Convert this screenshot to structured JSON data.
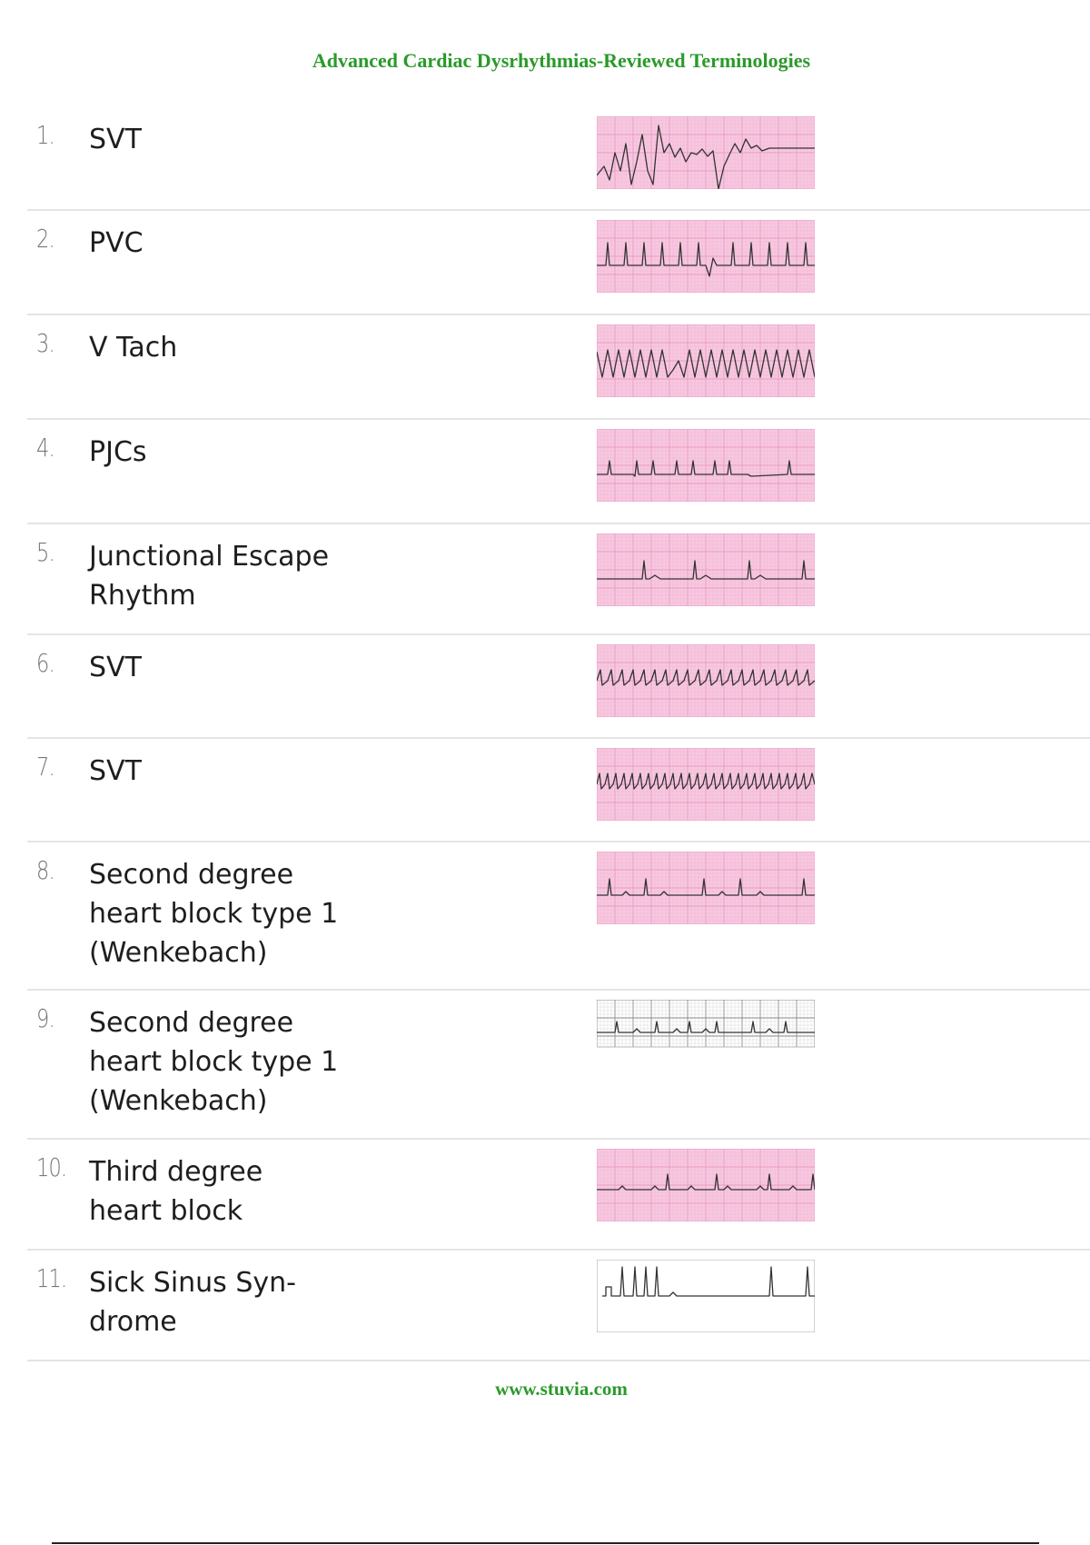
{
  "header": {
    "title": "Advanced Cardiac Dysrhythmias-Reviewed Terminologies"
  },
  "items": [
    {
      "number": "1.",
      "term": "SVT",
      "strip_icon": "ecg-irregular-strip",
      "strip_style": "pink"
    },
    {
      "number": "2.",
      "term": "PVC",
      "strip_icon": "ecg-pvc-strip",
      "strip_style": "pink"
    },
    {
      "number": "3.",
      "term": "V Tach",
      "strip_icon": "ecg-vtach-strip",
      "strip_style": "pink"
    },
    {
      "number": "4.",
      "term": "PJCs",
      "strip_icon": "ecg-pjc-strip",
      "strip_style": "pink"
    },
    {
      "number": "5.",
      "term": "Junctional Escape\nRhythm",
      "strip_icon": "ecg-junctional-strip",
      "strip_style": "pink"
    },
    {
      "number": "6.",
      "term": "SVT",
      "strip_icon": "ecg-svt-strip",
      "strip_style": "pink"
    },
    {
      "number": "7.",
      "term": "SVT",
      "strip_icon": "ecg-svt-fast-strip",
      "strip_style": "pink"
    },
    {
      "number": "8.",
      "term": "Second degree\nheart block type 1\n(Wenkebach)",
      "strip_icon": "ecg-wenckebach-strip",
      "strip_style": "pink"
    },
    {
      "number": "9.",
      "term": "Second degree\nheart block type 1\n(Wenkebach)",
      "strip_icon": "ecg-wenckebach-gray-strip",
      "strip_style": "gray"
    },
    {
      "number": "10.",
      "term": "Third degree\nheart block",
      "strip_icon": "ecg-third-degree-strip",
      "strip_style": "pink"
    },
    {
      "number": "11.",
      "term": "Sick Sinus Syn-\ndrome",
      "strip_icon": "ecg-sick-sinus-strip",
      "strip_style": "white"
    }
  ],
  "footer": {
    "url": "www.stuvia.com"
  },
  "colors": {
    "heading_green": "#2a9a2a",
    "ecg_pink": "#f7c8e0",
    "ecg_grid": "#e89cc4"
  }
}
